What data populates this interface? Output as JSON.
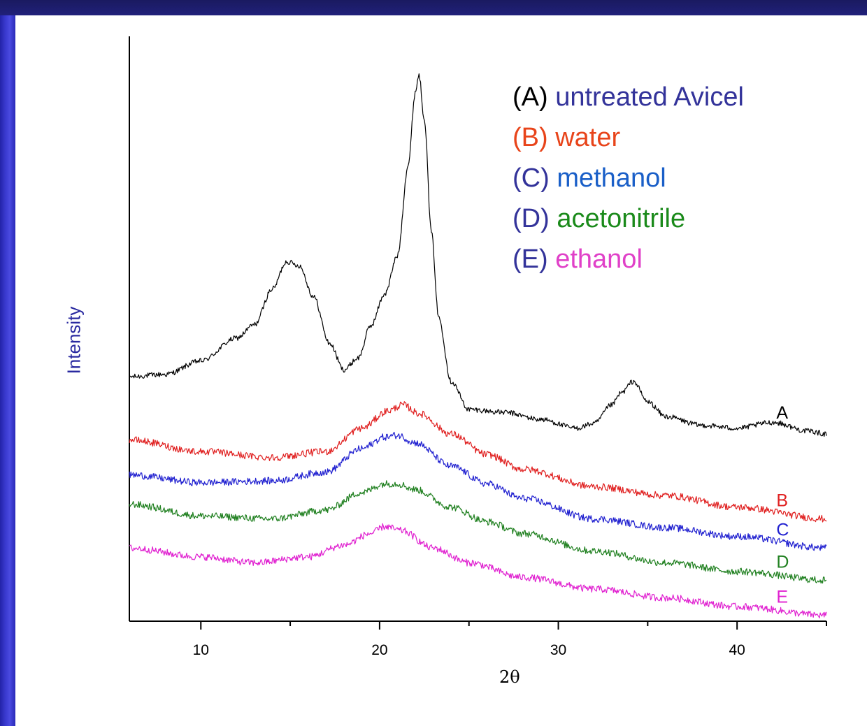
{
  "chart_data": {
    "type": "line",
    "title": "",
    "xlabel": "2θ",
    "ylabel": "Intensity",
    "xlim": [
      6,
      45
    ],
    "ylim": [
      0,
      1
    ],
    "y_ticks_shown": false,
    "x_ticks": [
      10,
      20,
      30,
      40
    ],
    "grid": false,
    "legend_placement": "top-right",
    "legend": [
      {
        "key": "(A)",
        "text": "untreated Avicel",
        "key_color": "#000000",
        "text_color": "#33339a"
      },
      {
        "key": "(B)",
        "text": "water",
        "key_color": "#e8441a",
        "text_color": "#e8441a"
      },
      {
        "key": "(C)",
        "text": "methanol",
        "key_color": "#33339a",
        "text_color": "#1a5fc8"
      },
      {
        "key": "(D)",
        "text": "acetonitrile",
        "key_color": "#33339a",
        "text_color": "#1a8a1a"
      },
      {
        "key": "(E)",
        "text": "ethanol",
        "key_color": "#33339a",
        "text_color": "#e040c8"
      }
    ],
    "series": [
      {
        "name": "A",
        "color": "#000000",
        "x": [
          6,
          8,
          10,
          12,
          13,
          14,
          14.8,
          15.5,
          16.3,
          17.2,
          18,
          18.8,
          19.5,
          20.3,
          21,
          21.6,
          22,
          22.2,
          22.5,
          22.9,
          23.3,
          24,
          25,
          27,
          29,
          31,
          32,
          33,
          33.5,
          34.2,
          35,
          36,
          38,
          40,
          42,
          44,
          45
        ],
        "y": [
          0.418,
          0.422,
          0.445,
          0.484,
          0.507,
          0.568,
          0.615,
          0.608,
          0.555,
          0.475,
          0.43,
          0.45,
          0.505,
          0.56,
          0.625,
          0.78,
          0.905,
          0.935,
          0.86,
          0.665,
          0.52,
          0.41,
          0.362,
          0.357,
          0.345,
          0.33,
          0.338,
          0.37,
          0.39,
          0.41,
          0.375,
          0.35,
          0.335,
          0.33,
          0.34,
          0.325,
          0.32
        ]
      },
      {
        "name": "B",
        "color": "#e02020",
        "x": [
          6,
          10,
          14,
          17,
          19,
          20.5,
          21.3,
          22.2,
          24,
          26,
          28,
          32,
          36,
          40,
          45
        ],
        "y": [
          0.31,
          0.29,
          0.28,
          0.29,
          0.33,
          0.36,
          0.37,
          0.355,
          0.32,
          0.285,
          0.26,
          0.23,
          0.215,
          0.195,
          0.175
        ]
      },
      {
        "name": "C",
        "color": "#2020d0",
        "x": [
          6,
          10,
          14,
          17,
          19,
          20.3,
          21,
          22,
          24,
          26,
          28,
          32,
          36,
          40,
          45
        ],
        "y": [
          0.25,
          0.237,
          0.24,
          0.255,
          0.295,
          0.315,
          0.318,
          0.305,
          0.265,
          0.235,
          0.21,
          0.175,
          0.16,
          0.145,
          0.125
        ]
      },
      {
        "name": "D",
        "color": "#208020",
        "x": [
          6,
          10,
          14,
          17,
          19,
          20.3,
          21,
          22,
          24,
          26,
          28,
          32,
          36,
          40,
          45
        ],
        "y": [
          0.2,
          0.18,
          0.175,
          0.19,
          0.22,
          0.235,
          0.235,
          0.225,
          0.195,
          0.17,
          0.15,
          0.12,
          0.1,
          0.085,
          0.07
        ]
      },
      {
        "name": "E",
        "color": "#e020d0",
        "x": [
          6,
          10,
          13,
          16,
          18,
          19.5,
          20.3,
          21.2,
          23,
          25,
          28,
          32,
          36,
          40,
          45
        ],
        "y": [
          0.125,
          0.11,
          0.1,
          0.11,
          0.13,
          0.15,
          0.162,
          0.155,
          0.125,
          0.1,
          0.075,
          0.055,
          0.04,
          0.025,
          0.01
        ]
      }
    ]
  }
}
